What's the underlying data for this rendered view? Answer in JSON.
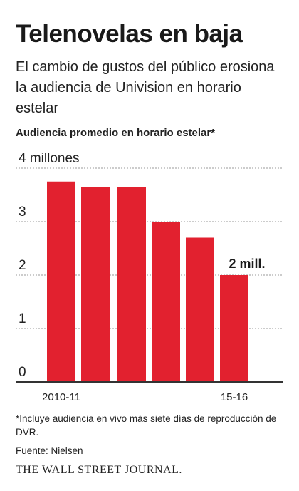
{
  "header": {
    "title": "Telenovelas en baja",
    "subtitle": "El cambio de gustos del público erosiona la audiencia de Univision en horario estelar"
  },
  "footer": {
    "footnote": "*Incluye audiencia en vivo más siete días de reproducción de DVR.",
    "source": "Fuente: Nielsen",
    "brand": "THE WALL STREET JOURNAL."
  },
  "colors": {
    "bar": "#e2212f",
    "grid": "#999999",
    "axis": "#333333"
  },
  "chart_data": {
    "type": "bar",
    "title": "Telenovelas en baja",
    "ylabel": "Audiencia promedio en horario estelar*",
    "ylim": [
      0,
      4
    ],
    "grid": true,
    "yticks": [
      {
        "value": 0,
        "label": "0"
      },
      {
        "value": 1,
        "label": "1"
      },
      {
        "value": 2,
        "label": "2"
      },
      {
        "value": 3,
        "label": "3"
      },
      {
        "value": 4,
        "label": "4 millones"
      }
    ],
    "categories": [
      "2010-11",
      "",
      "",
      "",
      "",
      "15-16"
    ],
    "values": [
      3.75,
      3.65,
      3.65,
      3.0,
      2.7,
      2.0
    ],
    "annotations": [
      {
        "index": 5,
        "text": "2 mill."
      }
    ]
  }
}
